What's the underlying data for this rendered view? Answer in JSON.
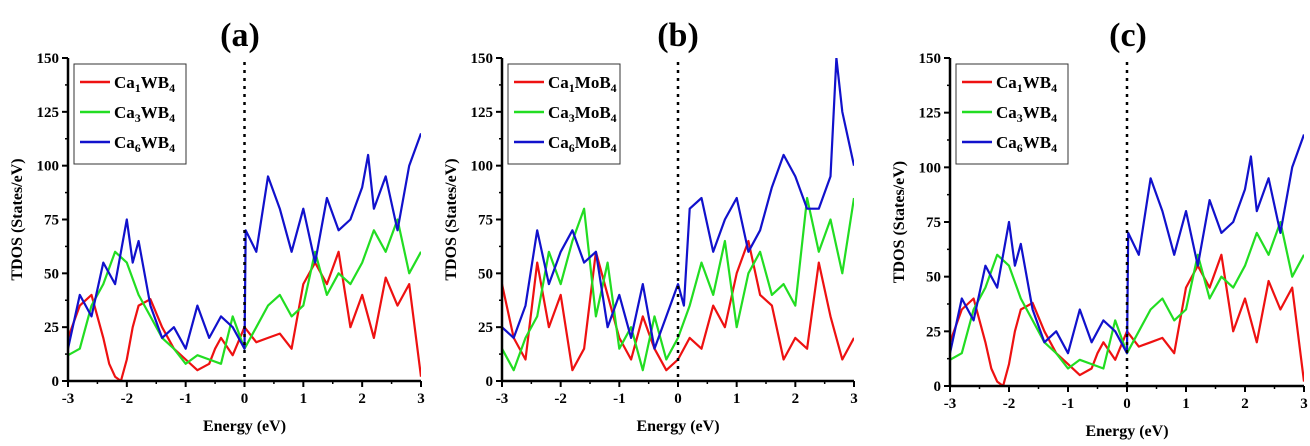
{
  "colors": {
    "red": "#ee1111",
    "green": "#22dd22",
    "blue": "#1111cc"
  },
  "chart_data": [
    {
      "type": "line",
      "title": "(a)",
      "xlabel": "Energy (eV)",
      "ylabel": "TDOS (States/eV)",
      "xlim": [
        -3,
        3
      ],
      "ylim": [
        0,
        150
      ],
      "xticks": [
        "-3",
        "-2",
        "-1",
        "0",
        "1",
        "2",
        "3"
      ],
      "yticks": [
        "0",
        "25",
        "50",
        "75",
        "100",
        "125",
        "150"
      ],
      "fermi_line_x": 0,
      "legend_position": "top-left",
      "series": [
        {
          "name": "Ca1WB4",
          "legend": {
            "a": "Ca",
            "s1": "1",
            "b": "WB",
            "s2": "4"
          },
          "color": "#ee1111",
          "x": [
            -3.0,
            -2.8,
            -2.6,
            -2.4,
            -2.3,
            -2.2,
            -2.1,
            -2.0,
            -1.9,
            -1.8,
            -1.6,
            -1.4,
            -1.2,
            -1.0,
            -0.8,
            -0.6,
            -0.5,
            -0.4,
            -0.2,
            0.0,
            0.2,
            0.4,
            0.6,
            0.8,
            1.0,
            1.2,
            1.4,
            1.6,
            1.8,
            2.0,
            2.2,
            2.4,
            2.6,
            2.8,
            3.0
          ],
          "y": [
            20,
            35,
            40,
            20,
            8,
            2,
            0,
            10,
            25,
            35,
            38,
            25,
            15,
            10,
            5,
            8,
            15,
            20,
            12,
            25,
            18,
            20,
            22,
            15,
            45,
            55,
            45,
            60,
            25,
            40,
            20,
            48,
            35,
            45,
            2
          ]
        },
        {
          "name": "Ca3WB4",
          "legend": {
            "a": "Ca",
            "s1": "3",
            "b": "WB",
            "s2": "4"
          },
          "color": "#22dd22",
          "x": [
            -3.0,
            -2.8,
            -2.6,
            -2.4,
            -2.2,
            -2.0,
            -1.8,
            -1.6,
            -1.4,
            -1.2,
            -1.0,
            -0.8,
            -0.6,
            -0.4,
            -0.2,
            0.0,
            0.2,
            0.4,
            0.6,
            0.8,
            1.0,
            1.2,
            1.4,
            1.6,
            1.8,
            2.0,
            2.2,
            2.4,
            2.6,
            2.8,
            3.0
          ],
          "y": [
            12,
            15,
            35,
            45,
            60,
            55,
            40,
            30,
            20,
            15,
            8,
            12,
            10,
            8,
            30,
            15,
            25,
            35,
            40,
            30,
            35,
            60,
            40,
            50,
            45,
            55,
            70,
            60,
            75,
            50,
            60
          ]
        },
        {
          "name": "Ca6WB4",
          "legend": {
            "a": "Ca",
            "s1": "6",
            "b": "WB",
            "s2": "4"
          },
          "color": "#1111cc",
          "x": [
            -3.0,
            -2.8,
            -2.6,
            -2.4,
            -2.2,
            -2.0,
            -1.9,
            -1.8,
            -1.6,
            -1.4,
            -1.2,
            -1.0,
            -0.8,
            -0.6,
            -0.4,
            -0.2,
            0.0,
            0.02,
            0.2,
            0.4,
            0.6,
            0.8,
            1.0,
            1.2,
            1.4,
            1.6,
            1.8,
            2.0,
            2.1,
            2.2,
            2.4,
            2.6,
            2.8,
            3.0
          ],
          "y": [
            15,
            40,
            30,
            55,
            45,
            75,
            55,
            65,
            35,
            20,
            25,
            15,
            35,
            20,
            30,
            25,
            15,
            70,
            60,
            95,
            80,
            60,
            80,
            55,
            85,
            70,
            75,
            90,
            105,
            80,
            95,
            70,
            100,
            115
          ]
        }
      ]
    },
    {
      "type": "line",
      "title": "(b)",
      "xlabel": "Energy (eV)",
      "ylabel": "TDOS (States/eV)",
      "xlim": [
        -3,
        3
      ],
      "ylim": [
        0,
        150
      ],
      "xticks": [
        "-3",
        "-2",
        "-1",
        "0",
        "1",
        "2",
        "3"
      ],
      "yticks": [
        "0",
        "25",
        "50",
        "75",
        "100",
        "125",
        "150"
      ],
      "fermi_line_x": 0,
      "legend_position": "top-left",
      "series": [
        {
          "name": "Ca1MoB4",
          "legend": {
            "a": "Ca",
            "s1": "1",
            "b": "MoB",
            "s2": "4"
          },
          "color": "#ee1111",
          "x": [
            -3.0,
            -2.8,
            -2.6,
            -2.4,
            -2.2,
            -2.0,
            -1.8,
            -1.6,
            -1.4,
            -1.2,
            -1.0,
            -0.8,
            -0.6,
            -0.4,
            -0.2,
            0.0,
            0.2,
            0.4,
            0.6,
            0.8,
            1.0,
            1.2,
            1.4,
            1.6,
            1.8,
            2.0,
            2.2,
            2.4,
            2.6,
            2.8,
            3.0
          ],
          "y": [
            45,
            20,
            10,
            55,
            25,
            40,
            5,
            15,
            60,
            40,
            20,
            10,
            30,
            15,
            5,
            10,
            20,
            15,
            35,
            25,
            50,
            65,
            40,
            35,
            10,
            20,
            15,
            55,
            30,
            10,
            20
          ]
        },
        {
          "name": "Ca3MoB4",
          "legend": {
            "a": "Ca",
            "s1": "3",
            "b": "MoB",
            "s2": "4"
          },
          "color": "#22dd22",
          "x": [
            -3.0,
            -2.8,
            -2.6,
            -2.4,
            -2.2,
            -2.0,
            -1.8,
            -1.6,
            -1.4,
            -1.2,
            -1.0,
            -0.8,
            -0.6,
            -0.4,
            -0.2,
            0.0,
            0.2,
            0.4,
            0.6,
            0.8,
            1.0,
            1.2,
            1.4,
            1.6,
            1.8,
            2.0,
            2.2,
            2.4,
            2.6,
            2.8,
            3.0
          ],
          "y": [
            15,
            5,
            20,
            30,
            60,
            45,
            65,
            80,
            30,
            55,
            15,
            25,
            5,
            30,
            10,
            20,
            35,
            55,
            40,
            65,
            25,
            50,
            60,
            40,
            45,
            35,
            85,
            60,
            75,
            50,
            85
          ]
        },
        {
          "name": "Ca6MoB4",
          "legend": {
            "a": "Ca",
            "s1": "6",
            "b": "MoB",
            "s2": "4"
          },
          "color": "#1111cc",
          "x": [
            -3.0,
            -2.8,
            -2.6,
            -2.4,
            -2.2,
            -2.0,
            -1.8,
            -1.6,
            -1.4,
            -1.2,
            -1.0,
            -0.8,
            -0.6,
            -0.4,
            -0.2,
            0.0,
            0.1,
            0.2,
            0.4,
            0.6,
            0.8,
            1.0,
            1.2,
            1.4,
            1.6,
            1.8,
            2.0,
            2.2,
            2.4,
            2.6,
            2.7,
            2.8,
            3.0
          ],
          "y": [
            25,
            20,
            35,
            70,
            45,
            60,
            70,
            55,
            60,
            25,
            40,
            20,
            45,
            15,
            30,
            45,
            35,
            80,
            85,
            60,
            75,
            85,
            60,
            70,
            90,
            105,
            95,
            80,
            80,
            95,
            150,
            125,
            100
          ]
        }
      ]
    },
    {
      "type": "line",
      "title": "(c)",
      "xlabel": "Energy (eV)",
      "ylabel": "TDOS (States/eV)",
      "xlim": [
        -3,
        3
      ],
      "ylim": [
        0,
        150
      ],
      "xticks": [
        "-3",
        "-2",
        "-1",
        "0",
        "1",
        "2",
        "3"
      ],
      "yticks": [
        "0",
        "25",
        "50",
        "75",
        "100",
        "125",
        "150"
      ],
      "fermi_line_x": 0,
      "legend_position": "top-left",
      "series": [
        {
          "name": "Ca1WB4",
          "legend": {
            "a": "Ca",
            "s1": "1",
            "b": "WB",
            "s2": "4"
          },
          "color": "#ee1111",
          "x": [
            -3.0,
            -2.8,
            -2.6,
            -2.4,
            -2.3,
            -2.2,
            -2.1,
            -2.0,
            -1.9,
            -1.8,
            -1.6,
            -1.4,
            -1.2,
            -1.0,
            -0.8,
            -0.6,
            -0.5,
            -0.4,
            -0.2,
            0.0,
            0.2,
            0.4,
            0.6,
            0.8,
            1.0,
            1.2,
            1.4,
            1.6,
            1.8,
            2.0,
            2.2,
            2.4,
            2.6,
            2.8,
            3.0
          ],
          "y": [
            20,
            35,
            40,
            20,
            8,
            2,
            0,
            10,
            25,
            35,
            38,
            25,
            15,
            10,
            5,
            8,
            15,
            20,
            12,
            25,
            18,
            20,
            22,
            15,
            45,
            55,
            45,
            60,
            25,
            40,
            20,
            48,
            35,
            45,
            2
          ]
        },
        {
          "name": "Ca3WB4",
          "legend": {
            "a": "Ca",
            "s1": "3",
            "b": "WB",
            "s2": "4"
          },
          "color": "#22dd22",
          "x": [
            -3.0,
            -2.8,
            -2.6,
            -2.4,
            -2.2,
            -2.0,
            -1.8,
            -1.6,
            -1.4,
            -1.2,
            -1.0,
            -0.8,
            -0.6,
            -0.4,
            -0.2,
            0.0,
            0.2,
            0.4,
            0.6,
            0.8,
            1.0,
            1.2,
            1.4,
            1.6,
            1.8,
            2.0,
            2.2,
            2.4,
            2.6,
            2.8,
            3.0
          ],
          "y": [
            12,
            15,
            35,
            45,
            60,
            55,
            40,
            30,
            20,
            15,
            8,
            12,
            10,
            8,
            30,
            15,
            25,
            35,
            40,
            30,
            35,
            60,
            40,
            50,
            45,
            55,
            70,
            60,
            75,
            50,
            60
          ]
        },
        {
          "name": "Ca6WB4",
          "legend": {
            "a": "Ca",
            "s1": "6",
            "b": "WB",
            "s2": "4"
          },
          "color": "#1111cc",
          "x": [
            -3.0,
            -2.8,
            -2.6,
            -2.4,
            -2.2,
            -2.0,
            -1.9,
            -1.8,
            -1.6,
            -1.4,
            -1.2,
            -1.0,
            -0.8,
            -0.6,
            -0.4,
            -0.2,
            0.0,
            0.02,
            0.2,
            0.4,
            0.6,
            0.8,
            1.0,
            1.2,
            1.4,
            1.6,
            1.8,
            2.0,
            2.1,
            2.2,
            2.4,
            2.6,
            2.8,
            3.0
          ],
          "y": [
            15,
            40,
            30,
            55,
            45,
            75,
            55,
            65,
            35,
            20,
            25,
            15,
            35,
            20,
            30,
            25,
            15,
            70,
            60,
            95,
            80,
            60,
            80,
            55,
            85,
            70,
            75,
            90,
            105,
            80,
            95,
            70,
            100,
            115
          ]
        }
      ]
    }
  ]
}
